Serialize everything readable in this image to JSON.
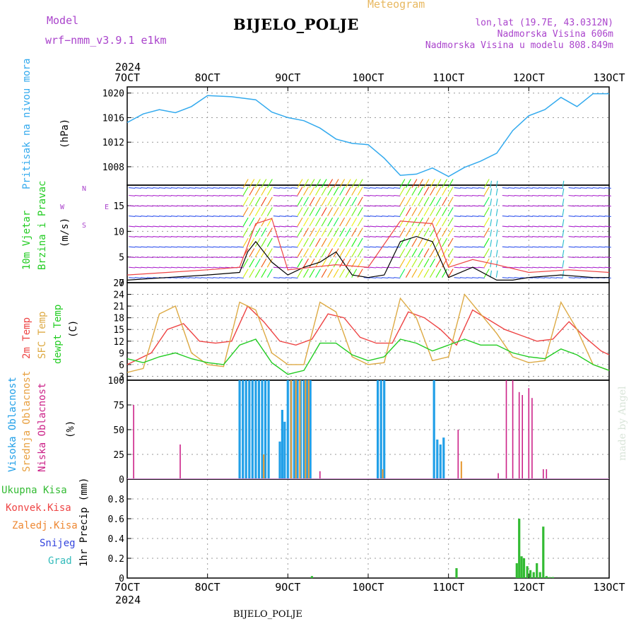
{
  "header": {
    "title": "BIJELO_POLJE",
    "subtitle": "Meteogram",
    "model_label": "Model",
    "model_name": "wrf−nmm_v3.9.1  e1km",
    "lonlat": "lon,lat (19.7E, 43.0312N)",
    "elevation": "Nadmorska Visina 606m",
    "model_elevation": "Nadmorska Visina u modelu 808.849m",
    "year": "2024",
    "footer": "BIJELO_POLJE",
    "watermark": "made by Angel"
  },
  "colors": {
    "pressure": "#33aaee",
    "wind_green": "#22cc22",
    "wind_purple": "#aa22cc",
    "temp_2m": "#ee4444",
    "temp_sfc": "#ddaa44",
    "dewpoint": "#22cc22",
    "cloud_high": "#22a0e8",
    "cloud_mid": "#e8a040",
    "cloud_low": "#cc2288",
    "precip_total": "#33bb33",
    "precip_conv": "#ee4444",
    "precip_frozen": "#ee8833",
    "snow": "#3344dd",
    "hail": "#33bbbb"
  },
  "chart_data": [
    {
      "type": "line",
      "ylabel_main": "Pritisak na nivou mora",
      "ylabel_unit": "(hPa)",
      "ylim": [
        1005,
        1021
      ],
      "yticks": [
        "1008",
        "1012",
        "1016",
        "1020"
      ],
      "grid": true,
      "x_days": [
        7,
        8,
        9,
        10,
        11,
        12,
        13
      ],
      "x": [
        7.0,
        7.2,
        7.4,
        7.6,
        7.8,
        8.0,
        8.3,
        8.6,
        8.8,
        9.0,
        9.2,
        9.4,
        9.6,
        9.8,
        10.0,
        10.2,
        10.4,
        10.6,
        10.8,
        11.0,
        11.2,
        11.4,
        11.6,
        11.8,
        12.0,
        12.2,
        12.4,
        12.6,
        12.8,
        13.0
      ],
      "values": [
        1015.2,
        1016.6,
        1017.3,
        1016.8,
        1017.8,
        1019.6,
        1019.4,
        1018.9,
        1016.9,
        1016.0,
        1015.5,
        1014.3,
        1012.5,
        1011.8,
        1011.6,
        1009.4,
        1006.6,
        1006.8,
        1007.8,
        1006.4,
        1007.9,
        1008.9,
        1010.2,
        1013.9,
        1016.3,
        1017.3,
        1019.3,
        1017.8,
        1019.9,
        1019.9
      ]
    },
    {
      "type": "line",
      "ylabel_main": "10m  Vjetar",
      "ylabel_sub": "Brzina i Pravac",
      "ylabel_unit": "(m/s)",
      "compass_n": "N",
      "compass_s": "S",
      "compass_w": "W",
      "compass_e": "E",
      "ylim": [
        0,
        19
      ],
      "yticks": [
        "0",
        "5",
        "10",
        "15"
      ],
      "grid": true,
      "series": [
        {
          "name": "",
          "x": [
            7.0,
            7.5,
            8.0,
            8.4,
            8.5,
            8.6,
            8.8,
            9.0,
            9.2,
            9.4,
            9.6,
            9.8,
            10.0,
            10.2,
            10.4,
            10.6,
            10.8,
            11.0,
            11.3,
            11.6,
            11.8,
            12.0,
            12.4,
            12.8,
            13.0
          ],
          "values": [
            0.5,
            1.0,
            1.5,
            2.0,
            6.0,
            8.0,
            4.0,
            1.5,
            3.0,
            4.0,
            6.0,
            1.5,
            1.0,
            1.5,
            8.0,
            9.0,
            8.0,
            1.0,
            3.0,
            0.5,
            0.5,
            1.0,
            1.5,
            1.0,
            1.0
          ]
        },
        {
          "name": "",
          "x": [
            7.0,
            7.5,
            8.0,
            8.4,
            8.6,
            8.8,
            9.0,
            9.3,
            9.6,
            10.0,
            10.4,
            10.8,
            11.0,
            11.3,
            11.6,
            12.0,
            12.5,
            13.0
          ],
          "values": [
            1.5,
            2.0,
            2.5,
            3.0,
            11.5,
            12.5,
            2.5,
            3.0,
            3.5,
            3.0,
            12.0,
            11.5,
            3.0,
            4.5,
            3.5,
            2.0,
            2.5,
            2.0
          ]
        }
      ]
    },
    {
      "type": "line",
      "ylabel_2m": "2m  Temp",
      "ylabel_sfc": "SFC Temp",
      "ylabel_dew": "dewpt Temp",
      "ylabel_unit": "(C)",
      "ylim": [
        2,
        27
      ],
      "yticks": [
        "3",
        "6",
        "9",
        "12",
        "15",
        "18",
        "21",
        "24",
        "27"
      ],
      "grid": true,
      "series": [
        {
          "name": "2m Temp",
          "x": [
            7.0,
            7.3,
            7.5,
            7.7,
            7.9,
            8.1,
            8.3,
            8.5,
            8.7,
            8.9,
            9.1,
            9.3,
            9.5,
            9.7,
            9.9,
            10.1,
            10.3,
            10.5,
            10.7,
            10.9,
            11.1,
            11.3,
            11.5,
            11.7,
            11.9,
            12.1,
            12.3,
            12.5,
            12.7,
            12.9,
            13.0
          ],
          "values": [
            6.0,
            9.0,
            15.0,
            16.5,
            12.0,
            11.5,
            12.0,
            21.0,
            17.0,
            12.0,
            11.0,
            12.5,
            19.0,
            18.0,
            13.0,
            11.5,
            11.5,
            19.5,
            18.0,
            15.0,
            11.0,
            20.0,
            17.5,
            15.0,
            13.5,
            12.0,
            12.5,
            17.0,
            13.0,
            9.5,
            8.5
          ]
        },
        {
          "name": "SFC Temp",
          "x": [
            7.0,
            7.2,
            7.4,
            7.6,
            7.8,
            8.0,
            8.2,
            8.4,
            8.6,
            8.8,
            9.0,
            9.2,
            9.4,
            9.6,
            9.8,
            10.0,
            10.2,
            10.4,
            10.6,
            10.8,
            11.0,
            11.2,
            11.4,
            11.6,
            11.8,
            12.0,
            12.2,
            12.4,
            12.6,
            12.8,
            13.0
          ],
          "values": [
            4.0,
            5.0,
            19.0,
            21.0,
            9.0,
            6.0,
            5.5,
            22.0,
            20.0,
            9.0,
            6.0,
            6.0,
            22.0,
            19.5,
            8.0,
            6.0,
            6.5,
            23.0,
            18.0,
            7.0,
            8.0,
            24.0,
            19.0,
            14.0,
            8.0,
            6.5,
            7.0,
            22.0,
            15.0,
            6.0,
            4.5
          ]
        },
        {
          "name": "dewpt Temp",
          "x": [
            7.0,
            7.2,
            7.4,
            7.6,
            7.8,
            8.0,
            8.2,
            8.4,
            8.6,
            8.8,
            9.0,
            9.2,
            9.4,
            9.6,
            9.8,
            10.0,
            10.2,
            10.4,
            10.6,
            10.8,
            11.0,
            11.2,
            11.4,
            11.6,
            11.8,
            12.0,
            12.2,
            12.4,
            12.6,
            12.8,
            13.0
          ],
          "values": [
            7.5,
            6.5,
            8.0,
            9.0,
            7.5,
            6.5,
            6.0,
            11.0,
            12.5,
            6.5,
            3.5,
            4.5,
            11.5,
            11.5,
            8.5,
            7.0,
            8.0,
            12.5,
            11.5,
            9.5,
            11.0,
            12.5,
            11.0,
            11.0,
            9.0,
            8.0,
            7.5,
            10.0,
            8.5,
            6.0,
            4.5
          ]
        }
      ]
    },
    {
      "type": "bar",
      "ylabel_high": "Visoka Oblacnost",
      "ylabel_mid": "Srednja Oblacnost",
      "ylabel_low": "Niska  Oblacnost",
      "ylabel_unit": "(%)",
      "ylim": [
        0,
        100
      ],
      "yticks": [
        "0",
        "25",
        "50",
        "75",
        "100"
      ],
      "grid": true,
      "series": [
        {
          "name": "Visoka Oblacnost",
          "x": [
            8.4,
            8.44,
            8.48,
            8.52,
            8.56,
            8.6,
            8.64,
            8.68,
            8.72,
            8.76,
            8.9,
            8.93,
            8.96,
            9.0,
            9.04,
            9.08,
            9.12,
            9.16,
            9.2,
            9.24,
            9.28,
            10.12,
            10.16,
            10.2,
            10.82,
            10.86,
            10.9,
            10.94
          ],
          "values": [
            100,
            100,
            100,
            100,
            100,
            100,
            100,
            100,
            100,
            100,
            38,
            70,
            58,
            100,
            100,
            100,
            100,
            100,
            100,
            100,
            100,
            100,
            100,
            100,
            100,
            40,
            35,
            42
          ]
        },
        {
          "name": "Srednja Oblacnost",
          "x": [
            8.7,
            9.04,
            9.1,
            9.15,
            9.22,
            9.26,
            10.18,
            11.16
          ],
          "values": [
            25,
            100,
            100,
            100,
            100,
            100,
            10,
            18
          ]
        },
        {
          "name": "Niska  Oblacnost",
          "x": [
            7.08,
            7.66,
            9.4,
            11.12,
            11.62,
            11.72,
            11.8,
            11.88,
            11.92,
            12.0,
            12.04,
            12.18,
            12.22
          ],
          "values": [
            75,
            35,
            8,
            50,
            6,
            100,
            100,
            88,
            85,
            92,
            82,
            10,
            10
          ]
        }
      ]
    },
    {
      "type": "bar",
      "ylabel": "1hr Precip (mm)",
      "ylim": [
        0,
        1.0
      ],
      "yticks": [
        "0",
        "0.2",
        "0.4",
        "0.6",
        "0.8"
      ],
      "grid": true,
      "legend": [
        "Ukupna  Kisa",
        "Konvek.Kisa",
        "Zaledj.Kisa",
        "Snijeg",
        "Grad"
      ],
      "series": [
        {
          "name": "Ukupna  Kisa",
          "x": [
            9.3,
            11.1,
            11.85,
            11.88,
            11.91,
            11.94,
            11.98,
            12.02,
            12.06,
            12.1,
            12.14,
            12.18,
            12.22,
            12.26,
            12.3
          ],
          "values": [
            0.02,
            0.1,
            0.15,
            0.6,
            0.22,
            0.2,
            0.12,
            0.08,
            0.06,
            0.15,
            0.06,
            0.52,
            0.02,
            0.01,
            0.01
          ]
        }
      ]
    }
  ],
  "x_axis": {
    "tick_labels": [
      "7OCT",
      "8OCT",
      "9OCT",
      "10OCT",
      "11OCT",
      "12OCT",
      "13OCT"
    ]
  }
}
